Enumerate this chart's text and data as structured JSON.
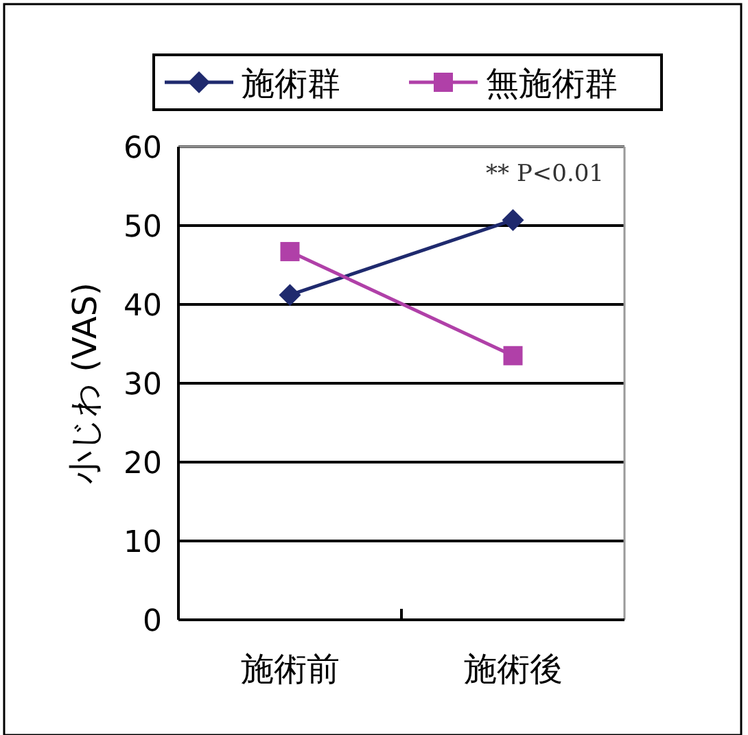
{
  "chart_data": {
    "type": "line",
    "categories": [
      "施術前",
      "施術後"
    ],
    "series": [
      {
        "name": "施術群",
        "color": "#1f2a6e",
        "marker": "diamond",
        "values": [
          41.2,
          50.7
        ]
      },
      {
        "name": "無施術群",
        "color": "#b040a8",
        "marker": "square",
        "values": [
          46.7,
          33.5
        ]
      }
    ],
    "ylabel": "小じわ (VAS)",
    "ylim": [
      0,
      60
    ],
    "yticks": [
      0,
      10,
      20,
      30,
      40,
      50,
      60
    ],
    "grid": "y",
    "legend": "top",
    "annotations": [
      "** P<0.01"
    ]
  }
}
